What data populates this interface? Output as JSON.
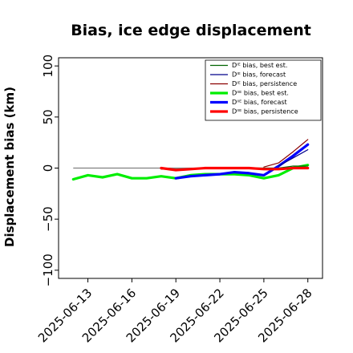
{
  "chart_data": {
    "type": "line",
    "title": "Bias, ice edge displacement",
    "xlabel": "",
    "ylabel": "Displacement bias (km)",
    "ylim": [
      -108,
      108
    ],
    "xlim": [
      "2025-06-11",
      "2025-06-29"
    ],
    "yticks": [
      -100,
      -50,
      0,
      50,
      100
    ],
    "ytick_labels": [
      "−100",
      "−50",
      "0",
      "50",
      "100"
    ],
    "xticks": [
      "2025-06-13",
      "2025-06-16",
      "2025-06-19",
      "2025-06-22",
      "2025-06-25",
      "2025-06-28"
    ],
    "xtick_colors": [
      "#000000",
      "#000000",
      "#228B22",
      "#000000",
      "#000000",
      "#000000"
    ],
    "legend_position": "top-right",
    "zero_line": {
      "color": "#808080",
      "x_range": [
        "2025-06-12",
        "2025-06-28"
      ],
      "y": 0
    },
    "series": [
      {
        "name": "Dᴵᴱ bias, best est.",
        "color": "#006400",
        "width": 1.2,
        "x": [
          "2025-06-18",
          "2025-06-19",
          "2025-06-20",
          "2025-06-21",
          "2025-06-22",
          "2025-06-23",
          "2025-06-24",
          "2025-06-25",
          "2025-06-26",
          "2025-06-27",
          "2025-06-28"
        ],
        "values": [
          -1,
          -1,
          -1,
          0,
          0,
          0,
          0,
          0,
          0,
          2,
          2
        ]
      },
      {
        "name": "Dᴵᴱ bias, forecast",
        "color": "#00008B",
        "width": 1.2,
        "x": [
          "2025-06-26",
          "2025-06-27",
          "2025-06-28"
        ],
        "values": [
          2,
          10,
          18
        ]
      },
      {
        "name": "Dᴵᴱ bias, persistence",
        "color": "#8B0000",
        "width": 1.2,
        "x": [
          "2025-06-25",
          "2025-06-26",
          "2025-06-27",
          "2025-06-28"
        ],
        "values": [
          1,
          5,
          16,
          28
        ]
      },
      {
        "name": "Dᴵᴵᴱ bias, best est.",
        "color": "#00EE00",
        "width": 3.2,
        "x": [
          "2025-06-12",
          "2025-06-13",
          "2025-06-14",
          "2025-06-15",
          "2025-06-16",
          "2025-06-17",
          "2025-06-18",
          "2025-06-19",
          "2025-06-20",
          "2025-06-21",
          "2025-06-22",
          "2025-06-23",
          "2025-06-24",
          "2025-06-25",
          "2025-06-26",
          "2025-06-27",
          "2025-06-28"
        ],
        "values": [
          -11,
          -7,
          -9,
          -6,
          -10,
          -10,
          -8,
          -10,
          -7,
          -6,
          -6,
          -6,
          -7,
          -10,
          -7,
          0,
          3
        ]
      },
      {
        "name": "Dᴵᴵᴱ bias, forecast",
        "color": "#0000FF",
        "width": 3.2,
        "x": [
          "2025-06-19",
          "2025-06-20",
          "2025-06-21",
          "2025-06-22",
          "2025-06-23",
          "2025-06-24",
          "2025-06-25",
          "2025-06-26",
          "2025-06-27",
          "2025-06-28"
        ],
        "values": [
          -10,
          -8,
          -7,
          -6,
          -4,
          -5,
          -7,
          2,
          12,
          23
        ]
      },
      {
        "name": "Dᴵᴵᴱ bias, persistence",
        "color": "#FF0000",
        "width": 3.2,
        "x": [
          "2025-06-18",
          "2025-06-19",
          "2025-06-20",
          "2025-06-21",
          "2025-06-22",
          "2025-06-23",
          "2025-06-24",
          "2025-06-25",
          "2025-06-26",
          "2025-06-27",
          "2025-06-28"
        ],
        "values": [
          0,
          -2,
          -1,
          0,
          0,
          0,
          0,
          -1,
          -1,
          0,
          0
        ]
      }
    ]
  }
}
